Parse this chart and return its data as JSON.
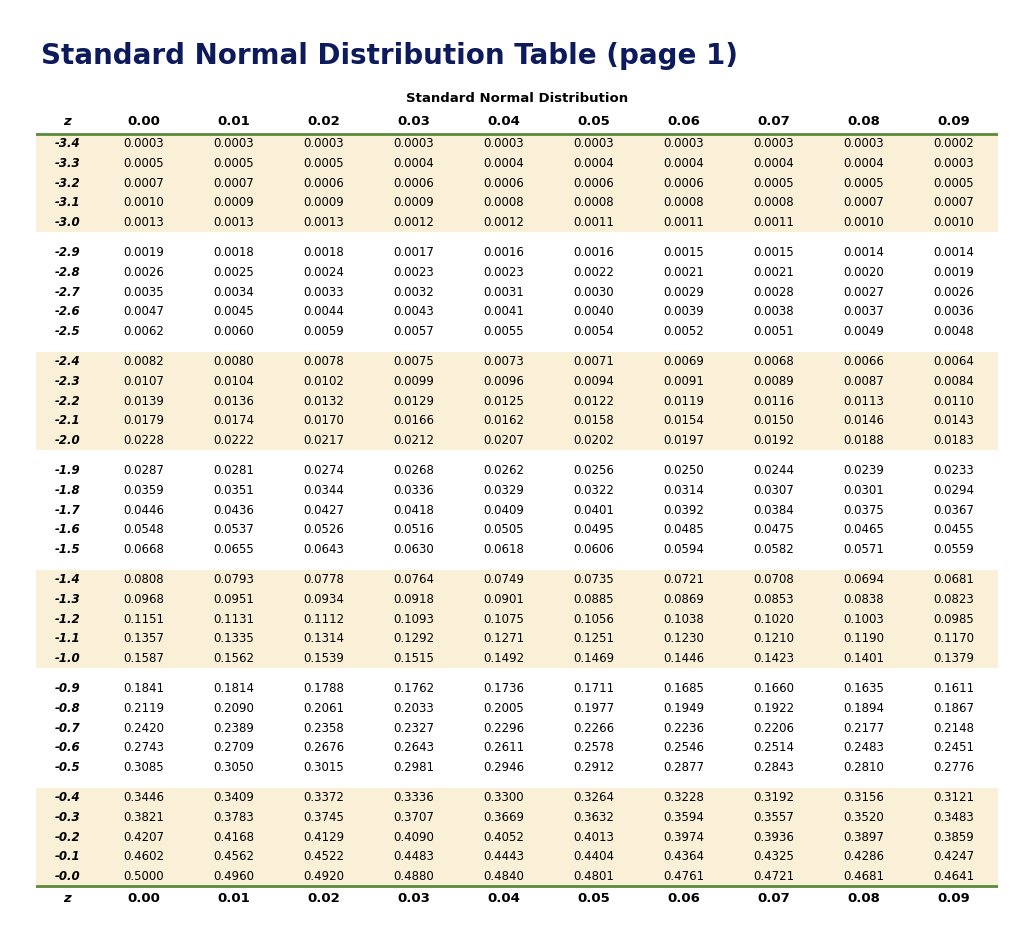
{
  "title": "Standard Normal Distribution Table (page 1)",
  "table_header": "Standard Normal Distribution",
  "col_headers": [
    "z",
    "0.00",
    "0.01",
    "0.02",
    "0.03",
    "0.04",
    "0.05",
    "0.06",
    "0.07",
    "0.08",
    "0.09"
  ],
  "row_groups": [
    {
      "bg": "#faf0d7",
      "rows": [
        [
          "-3.4",
          "0.0003",
          "0.0003",
          "0.0003",
          "0.0003",
          "0.0003",
          "0.0003",
          "0.0003",
          "0.0003",
          "0.0003",
          "0.0002"
        ],
        [
          "-3.3",
          "0.0005",
          "0.0005",
          "0.0005",
          "0.0004",
          "0.0004",
          "0.0004",
          "0.0004",
          "0.0004",
          "0.0004",
          "0.0003"
        ],
        [
          "-3.2",
          "0.0007",
          "0.0007",
          "0.0006",
          "0.0006",
          "0.0006",
          "0.0006",
          "0.0006",
          "0.0005",
          "0.0005",
          "0.0005"
        ],
        [
          "-3.1",
          "0.0010",
          "0.0009",
          "0.0009",
          "0.0009",
          "0.0008",
          "0.0008",
          "0.0008",
          "0.0008",
          "0.0007",
          "0.0007"
        ],
        [
          "-3.0",
          "0.0013",
          "0.0013",
          "0.0013",
          "0.0012",
          "0.0012",
          "0.0011",
          "0.0011",
          "0.0011",
          "0.0010",
          "0.0010"
        ]
      ]
    },
    {
      "bg": "#ffffff",
      "rows": [
        [
          "-2.9",
          "0.0019",
          "0.0018",
          "0.0018",
          "0.0017",
          "0.0016",
          "0.0016",
          "0.0015",
          "0.0015",
          "0.0014",
          "0.0014"
        ],
        [
          "-2.8",
          "0.0026",
          "0.0025",
          "0.0024",
          "0.0023",
          "0.0023",
          "0.0022",
          "0.0021",
          "0.0021",
          "0.0020",
          "0.0019"
        ],
        [
          "-2.7",
          "0.0035",
          "0.0034",
          "0.0033",
          "0.0032",
          "0.0031",
          "0.0030",
          "0.0029",
          "0.0028",
          "0.0027",
          "0.0026"
        ],
        [
          "-2.6",
          "0.0047",
          "0.0045",
          "0.0044",
          "0.0043",
          "0.0041",
          "0.0040",
          "0.0039",
          "0.0038",
          "0.0037",
          "0.0036"
        ],
        [
          "-2.5",
          "0.0062",
          "0.0060",
          "0.0059",
          "0.0057",
          "0.0055",
          "0.0054",
          "0.0052",
          "0.0051",
          "0.0049",
          "0.0048"
        ]
      ]
    },
    {
      "bg": "#faf0d7",
      "rows": [
        [
          "-2.4",
          "0.0082",
          "0.0080",
          "0.0078",
          "0.0075",
          "0.0073",
          "0.0071",
          "0.0069",
          "0.0068",
          "0.0066",
          "0.0064"
        ],
        [
          "-2.3",
          "0.0107",
          "0.0104",
          "0.0102",
          "0.0099",
          "0.0096",
          "0.0094",
          "0.0091",
          "0.0089",
          "0.0087",
          "0.0084"
        ],
        [
          "-2.2",
          "0.0139",
          "0.0136",
          "0.0132",
          "0.0129",
          "0.0125",
          "0.0122",
          "0.0119",
          "0.0116",
          "0.0113",
          "0.0110"
        ],
        [
          "-2.1",
          "0.0179",
          "0.0174",
          "0.0170",
          "0.0166",
          "0.0162",
          "0.0158",
          "0.0154",
          "0.0150",
          "0.0146",
          "0.0143"
        ],
        [
          "-2.0",
          "0.0228",
          "0.0222",
          "0.0217",
          "0.0212",
          "0.0207",
          "0.0202",
          "0.0197",
          "0.0192",
          "0.0188",
          "0.0183"
        ]
      ]
    },
    {
      "bg": "#ffffff",
      "rows": [
        [
          "-1.9",
          "0.0287",
          "0.0281",
          "0.0274",
          "0.0268",
          "0.0262",
          "0.0256",
          "0.0250",
          "0.0244",
          "0.0239",
          "0.0233"
        ],
        [
          "-1.8",
          "0.0359",
          "0.0351",
          "0.0344",
          "0.0336",
          "0.0329",
          "0.0322",
          "0.0314",
          "0.0307",
          "0.0301",
          "0.0294"
        ],
        [
          "-1.7",
          "0.0446",
          "0.0436",
          "0.0427",
          "0.0418",
          "0.0409",
          "0.0401",
          "0.0392",
          "0.0384",
          "0.0375",
          "0.0367"
        ],
        [
          "-1.6",
          "0.0548",
          "0.0537",
          "0.0526",
          "0.0516",
          "0.0505",
          "0.0495",
          "0.0485",
          "0.0475",
          "0.0465",
          "0.0455"
        ],
        [
          "-1.5",
          "0.0668",
          "0.0655",
          "0.0643",
          "0.0630",
          "0.0618",
          "0.0606",
          "0.0594",
          "0.0582",
          "0.0571",
          "0.0559"
        ]
      ]
    },
    {
      "bg": "#faf0d7",
      "rows": [
        [
          "-1.4",
          "0.0808",
          "0.0793",
          "0.0778",
          "0.0764",
          "0.0749",
          "0.0735",
          "0.0721",
          "0.0708",
          "0.0694",
          "0.0681"
        ],
        [
          "-1.3",
          "0.0968",
          "0.0951",
          "0.0934",
          "0.0918",
          "0.0901",
          "0.0885",
          "0.0869",
          "0.0853",
          "0.0838",
          "0.0823"
        ],
        [
          "-1.2",
          "0.1151",
          "0.1131",
          "0.1112",
          "0.1093",
          "0.1075",
          "0.1056",
          "0.1038",
          "0.1020",
          "0.1003",
          "0.0985"
        ],
        [
          "-1.1",
          "0.1357",
          "0.1335",
          "0.1314",
          "0.1292",
          "0.1271",
          "0.1251",
          "0.1230",
          "0.1210",
          "0.1190",
          "0.1170"
        ],
        [
          "-1.0",
          "0.1587",
          "0.1562",
          "0.1539",
          "0.1515",
          "0.1492",
          "0.1469",
          "0.1446",
          "0.1423",
          "0.1401",
          "0.1379"
        ]
      ]
    },
    {
      "bg": "#ffffff",
      "rows": [
        [
          "-0.9",
          "0.1841",
          "0.1814",
          "0.1788",
          "0.1762",
          "0.1736",
          "0.1711",
          "0.1685",
          "0.1660",
          "0.1635",
          "0.1611"
        ],
        [
          "-0.8",
          "0.2119",
          "0.2090",
          "0.2061",
          "0.2033",
          "0.2005",
          "0.1977",
          "0.1949",
          "0.1922",
          "0.1894",
          "0.1867"
        ],
        [
          "-0.7",
          "0.2420",
          "0.2389",
          "0.2358",
          "0.2327",
          "0.2296",
          "0.2266",
          "0.2236",
          "0.2206",
          "0.2177",
          "0.2148"
        ],
        [
          "-0.6",
          "0.2743",
          "0.2709",
          "0.2676",
          "0.2643",
          "0.2611",
          "0.2578",
          "0.2546",
          "0.2514",
          "0.2483",
          "0.2451"
        ],
        [
          "-0.5",
          "0.3085",
          "0.3050",
          "0.3015",
          "0.2981",
          "0.2946",
          "0.2912",
          "0.2877",
          "0.2843",
          "0.2810",
          "0.2776"
        ]
      ]
    },
    {
      "bg": "#faf0d7",
      "rows": [
        [
          "-0.4",
          "0.3446",
          "0.3409",
          "0.3372",
          "0.3336",
          "0.3300",
          "0.3264",
          "0.3228",
          "0.3192",
          "0.3156",
          "0.3121"
        ],
        [
          "-0.3",
          "0.3821",
          "0.3783",
          "0.3745",
          "0.3707",
          "0.3669",
          "0.3632",
          "0.3594",
          "0.3557",
          "0.3520",
          "0.3483"
        ],
        [
          "-0.2",
          "0.4207",
          "0.4168",
          "0.4129",
          "0.4090",
          "0.4052",
          "0.4013",
          "0.3974",
          "0.3936",
          "0.3897",
          "0.3859"
        ],
        [
          "-0.1",
          "0.4602",
          "0.4562",
          "0.4522",
          "0.4483",
          "0.4443",
          "0.4404",
          "0.4364",
          "0.4325",
          "0.4286",
          "0.4247"
        ],
        [
          "-0.0",
          "0.5000",
          "0.4960",
          "0.4920",
          "0.4880",
          "0.4840",
          "0.4801",
          "0.4761",
          "0.4721",
          "0.4681",
          "0.4641"
        ]
      ]
    }
  ],
  "page_bg": "#ffffff",
  "table_outer_border_color": "#b0b0b0",
  "table_inner_border_color": "#5a8a3a",
  "title_color": "#0d1a5c",
  "title_fontsize": 20,
  "table_header_fontsize": 9.5,
  "col_header_fontsize": 9.5,
  "cell_fontsize": 8.5
}
